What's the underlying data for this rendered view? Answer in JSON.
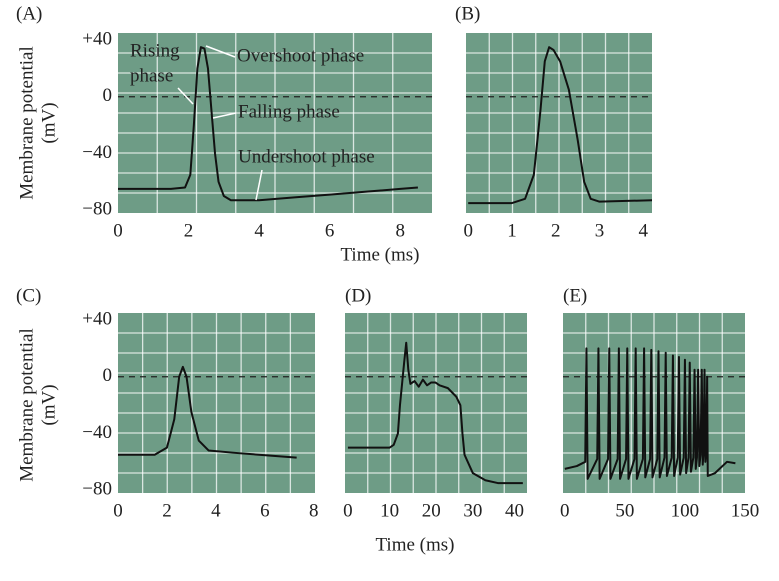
{
  "chart_data": [
    {
      "type": "line",
      "label": "(A)",
      "color": "#111111",
      "background": "#6e9c86",
      "x": [
        0,
        1.5,
        1.9,
        2.05,
        2.15,
        2.25,
        2.35,
        2.45,
        2.55,
        2.65,
        2.75,
        2.85,
        3.0,
        3.2,
        4,
        5,
        6,
        7,
        8,
        8.5
      ],
      "values": [
        -65,
        -65,
        -64,
        -55,
        -20,
        20,
        35,
        34,
        20,
        -10,
        -40,
        -60,
        -70,
        -73,
        -73,
        -71,
        -69,
        -67,
        -65,
        -64
      ],
      "xlim": [
        0,
        8.9
      ],
      "ylim": [
        -82,
        45
      ],
      "xticks": [
        0,
        2,
        4,
        6,
        8
      ],
      "yticks": [
        {
          "value": 40,
          "label": "+40"
        },
        0,
        {
          "value": -40,
          "label": "−40"
        },
        {
          "value": -80,
          "label": "−80"
        }
      ],
      "xlabel": "Time (ms)",
      "ylabel": [
        "Membrane potential",
        "(mV)"
      ],
      "reference_line": 0,
      "annotations": [
        {
          "text": [
            "Rising",
            "phase"
          ]
        },
        {
          "text": [
            "Overshoot phase"
          ]
        },
        {
          "text": [
            "Falling phase"
          ]
        },
        {
          "text": [
            "Undershoot phase"
          ]
        }
      ]
    },
    {
      "type": "line",
      "label": "(B)",
      "color": "#111111",
      "background": "#6e9c86",
      "x": [
        0,
        1,
        1.3,
        1.5,
        1.65,
        1.75,
        1.85,
        1.95,
        2.1,
        2.3,
        2.5,
        2.65,
        2.8,
        3,
        4.2
      ],
      "values": [
        -75,
        -75,
        -72,
        -55,
        -10,
        25,
        35,
        33,
        25,
        5,
        -30,
        -60,
        -72,
        -74,
        -73
      ],
      "xlim": [
        -0.05,
        4.2
      ],
      "ylim": [
        -82,
        45
      ],
      "xticks": [
        0,
        1,
        2,
        3,
        4
      ],
      "reference_line": 0
    },
    {
      "type": "line",
      "label": "(C)",
      "color": "#111111",
      "background": "#6e9c86",
      "x": [
        0,
        1.5,
        2,
        2.3,
        2.5,
        2.65,
        2.8,
        3.0,
        3.3,
        3.7,
        5,
        7.3
      ],
      "values": [
        -55,
        -55,
        -50,
        -30,
        0,
        7,
        0,
        -25,
        -45,
        -52,
        -54,
        -57
      ],
      "xlim": [
        0,
        8.05
      ],
      "ylim": [
        -82,
        45
      ],
      "xticks": [
        0,
        2,
        4,
        6,
        8
      ],
      "yticks": [
        {
          "value": 40,
          "label": "+40"
        },
        0,
        {
          "value": -40,
          "label": "−40"
        },
        {
          "value": -80,
          "label": "−80"
        }
      ],
      "ylabel": [
        "Membrane potential",
        "(mV)"
      ],
      "reference_line": 0
    },
    {
      "type": "line",
      "label": "(D)",
      "color": "#111111",
      "background": "#6e9c86",
      "x": [
        0,
        10,
        11,
        12,
        12.5,
        13,
        13.5,
        14,
        14.5,
        15,
        16,
        17,
        18,
        19,
        20,
        21,
        22,
        24,
        26,
        27,
        27.5,
        28,
        30,
        33,
        36,
        42
      ],
      "values": [
        -50,
        -50,
        -48,
        -40,
        -20,
        -5,
        10,
        24,
        5,
        -5,
        -3,
        -7,
        -2,
        -6,
        -4,
        -4,
        -6,
        -8,
        -14,
        -20,
        -40,
        -55,
        -68,
        -73,
        -75,
        -75
      ],
      "xlim": [
        -0.7,
        43
      ],
      "ylim": [
        -82,
        45
      ],
      "xticks": [
        0,
        10,
        20,
        30,
        40
      ],
      "xlabel": "Time (ms)",
      "reference_line": 0
    },
    {
      "type": "line",
      "label": "(E)",
      "color": "#111111",
      "background": "#6e9c86",
      "x": [
        0,
        10,
        17,
        18,
        19,
        27,
        28,
        29,
        36,
        37,
        38,
        44,
        45,
        46,
        51,
        52,
        53,
        58,
        59,
        60,
        65,
        66,
        67,
        71,
        72,
        73,
        77,
        78,
        79,
        83,
        84,
        85,
        89,
        90,
        91,
        94,
        95,
        96,
        99,
        100,
        101,
        103,
        104,
        105,
        107,
        108,
        109,
        110,
        111,
        112,
        113,
        114,
        114.8,
        115.5,
        116.3,
        117,
        117.8,
        118.5,
        119,
        125,
        135,
        142
      ],
      "values": [
        -65,
        -63,
        -60,
        20,
        -72,
        -58,
        20,
        -72,
        -58,
        20,
        -72,
        -58,
        20,
        -72,
        -58,
        20,
        -72,
        -58,
        20,
        -72,
        -58,
        20,
        -71,
        -58,
        19,
        -71,
        -58,
        18,
        -71,
        -57,
        17,
        -70,
        -57,
        15,
        -70,
        -57,
        14,
        -69,
        -57,
        12,
        -68,
        -57,
        10,
        -67,
        -57,
        5,
        -65,
        -57,
        5,
        -63,
        -55,
        5,
        -62,
        -53,
        5,
        -60,
        -52,
        0,
        -70,
        -68,
        -60,
        -61
      ],
      "xlim": [
        -1.5,
        150
      ],
      "ylim": [
        -82,
        45
      ],
      "xticks": [
        0,
        50,
        100,
        150
      ],
      "reference_line": 0
    }
  ]
}
